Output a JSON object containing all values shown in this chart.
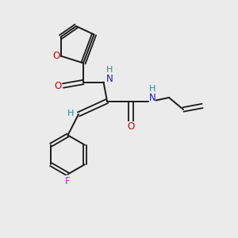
{
  "bg_color": "#ebebeb",
  "bond_color": "#1a1a1a",
  "oxygen_color": "#cc0000",
  "nitrogen_color": "#1a1acc",
  "fluorine_color": "#cc22cc",
  "hydrogen_color": "#2e8b8b",
  "figsize": [
    3.0,
    3.0
  ],
  "dpi": 100,
  "xlim": [
    0,
    10
  ],
  "ylim": [
    0,
    10
  ]
}
